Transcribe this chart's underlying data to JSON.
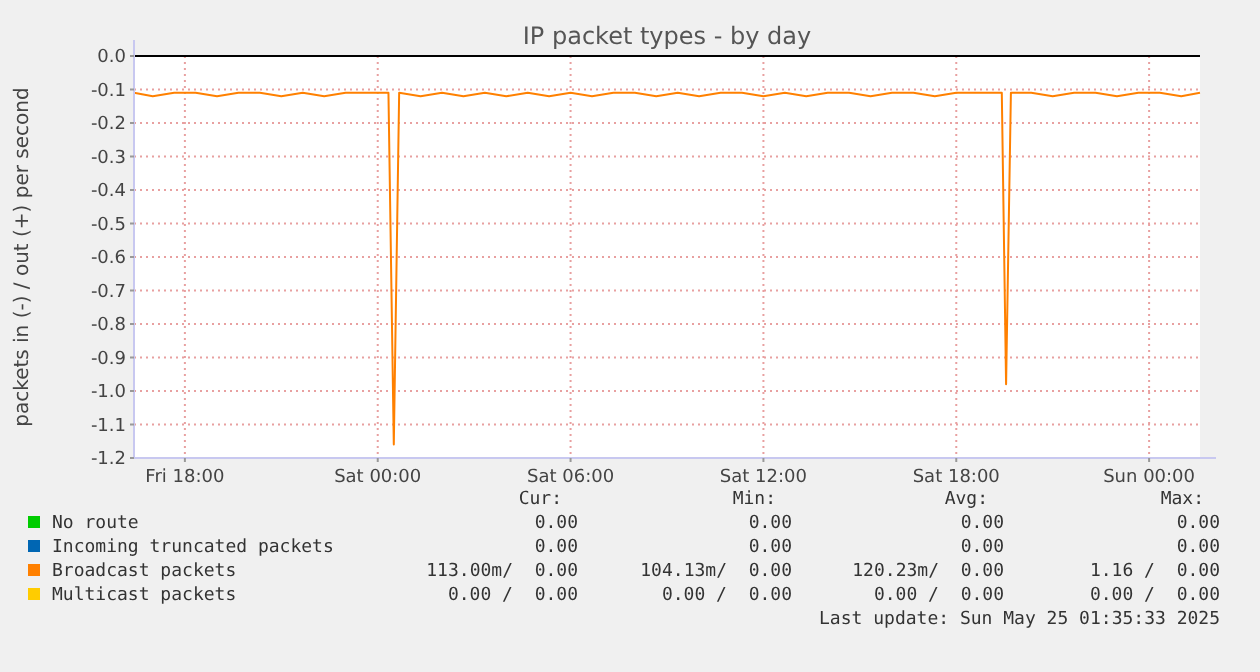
{
  "chart_data": {
    "type": "line",
    "title": "IP packet types - by day",
    "ylabel": "packets in (-) / out (+) per second",
    "xlim": [
      "2025-05-23T16:25",
      "2025-05-25T01:35"
    ],
    "xticks": [
      {
        "value": "2025-05-23T18:00",
        "label": "Fri 18:00"
      },
      {
        "value": "2025-05-24T00:00",
        "label": "Sat 00:00"
      },
      {
        "value": "2025-05-24T06:00",
        "label": "Sat 06:00"
      },
      {
        "value": "2025-05-24T12:00",
        "label": "Sat 12:00"
      },
      {
        "value": "2025-05-24T18:00",
        "label": "Sat 18:00"
      },
      {
        "value": "2025-05-25T00:00",
        "label": "Sun 00:00"
      }
    ],
    "ylim": [
      -1.2,
      0
    ],
    "yticks": [
      {
        "value": 0,
        "label": "0.0"
      },
      -0.1,
      -0.2,
      -0.3,
      -0.4,
      -0.5,
      -0.6,
      -0.7,
      -0.8,
      -0.9,
      {
        "value": -1,
        "label": "-1.0"
      },
      -1.1,
      -1.2
    ],
    "grid": true,
    "legend": "bottom",
    "ref_lines": [
      {
        "axis": "y",
        "value": 0,
        "color": "#000000"
      }
    ],
    "series": [
      {
        "name": "No route",
        "color": "#00cc00"
      },
      {
        "name": "Incoming truncated packets",
        "color": "#0066b3"
      },
      {
        "name": "Broadcast packets",
        "color": "#ff8000",
        "x": [
          "2025-05-23T16:25",
          "2025-05-23T17:00",
          "2025-05-23T17:40",
          "2025-05-23T18:20",
          "2025-05-23T19:00",
          "2025-05-23T19:40",
          "2025-05-23T20:20",
          "2025-05-23T21:00",
          "2025-05-23T21:40",
          "2025-05-23T22:20",
          "2025-05-23T23:00",
          "2025-05-23T23:40",
          "2025-05-24T00:20",
          "2025-05-24T00:30",
          "2025-05-24T00:40",
          "2025-05-24T01:20",
          "2025-05-24T02:00",
          "2025-05-24T02:40",
          "2025-05-24T03:20",
          "2025-05-24T04:00",
          "2025-05-24T04:40",
          "2025-05-24T05:20",
          "2025-05-24T06:00",
          "2025-05-24T06:40",
          "2025-05-24T07:20",
          "2025-05-24T08:00",
          "2025-05-24T08:40",
          "2025-05-24T09:20",
          "2025-05-24T10:00",
          "2025-05-24T10:40",
          "2025-05-24T11:20",
          "2025-05-24T12:00",
          "2025-05-24T12:40",
          "2025-05-24T13:20",
          "2025-05-24T14:00",
          "2025-05-24T14:40",
          "2025-05-24T15:20",
          "2025-05-24T16:00",
          "2025-05-24T16:40",
          "2025-05-24T17:20",
          "2025-05-24T18:00",
          "2025-05-24T18:40",
          "2025-05-24T19:25",
          "2025-05-24T19:33",
          "2025-05-24T19:42",
          "2025-05-24T20:20",
          "2025-05-24T21:00",
          "2025-05-24T21:40",
          "2025-05-24T22:20",
          "2025-05-24T23:00",
          "2025-05-24T23:40",
          "2025-05-25T00:20",
          "2025-05-25T01:00",
          "2025-05-25T01:35"
        ],
        "values": [
          -0.11,
          -0.12,
          -0.11,
          -0.11,
          -0.12,
          -0.11,
          -0.11,
          -0.12,
          -0.11,
          -0.12,
          -0.11,
          -0.11,
          -0.11,
          -1.16,
          -0.11,
          -0.12,
          -0.11,
          -0.12,
          -0.11,
          -0.12,
          -0.11,
          -0.12,
          -0.11,
          -0.12,
          -0.11,
          -0.11,
          -0.12,
          -0.11,
          -0.12,
          -0.11,
          -0.11,
          -0.12,
          -0.11,
          -0.12,
          -0.11,
          -0.11,
          -0.12,
          -0.11,
          -0.11,
          -0.12,
          -0.11,
          -0.11,
          -0.11,
          -0.98,
          -0.11,
          -0.11,
          -0.12,
          -0.11,
          -0.11,
          -0.12,
          -0.11,
          -0.11,
          -0.12,
          -0.11
        ]
      },
      {
        "name": "Multicast packets",
        "color": "#ffcc00"
      }
    ],
    "annotations": [
      "Cur:",
      "Min:",
      "Avg:",
      "Max:",
      "0.00",
      "0.00",
      "0.00",
      "0.00",
      "0.00",
      "0.00",
      "0.00",
      "0.00",
      "113.00m/  0.00",
      "104.13m/  0.00",
      "120.23m/  0.00",
      "1.16 /  0.00",
      "0.00 /  0.00",
      "0.00 /  0.00",
      "0.00 /  0.00",
      "0.00 /  0.00",
      "Last update: Sun May 25 01:35:33 2025"
    ]
  }
}
